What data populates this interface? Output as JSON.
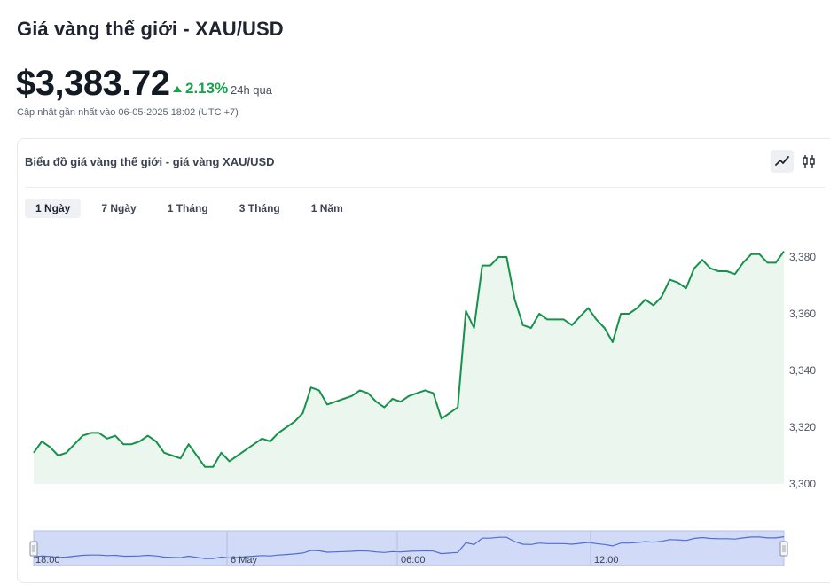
{
  "header": {
    "title": "Giá vàng thế giới - XAU/USD",
    "price": "$3,383.72",
    "change": "2.13%",
    "period": "24h qua",
    "updated": "Cập nhật gần nhất vào 06-05-2025 18:02 (UTC +7)"
  },
  "card": {
    "title": "Biểu đồ giá vàng thế giới - giá vàng XAU/USD",
    "view_buttons": [
      {
        "icon": "line-chart-icon",
        "active": true
      },
      {
        "icon": "candlestick-icon",
        "active": false
      }
    ],
    "tabs": [
      {
        "label": "1 Ngày",
        "active": true
      },
      {
        "label": "7 Ngày",
        "active": false
      },
      {
        "label": "1 Tháng",
        "active": false
      },
      {
        "label": "3 Tháng",
        "active": false
      },
      {
        "label": "1 Năm",
        "active": false
      }
    ]
  },
  "colors": {
    "line": "#16924a",
    "area": "#eaf6ee",
    "navigator_fill": "#c9d3f5",
    "navigator_line": "#4f6dd6",
    "positive": "#16a34a"
  },
  "chart_data": {
    "type": "area",
    "y": [
      3311,
      3315,
      3313,
      3310,
      3311,
      3314,
      3317,
      3318,
      3318,
      3316,
      3317,
      3314,
      3314,
      3315,
      3317,
      3315,
      3311,
      3310,
      3309,
      3314,
      3310,
      3306,
      3306,
      3311,
      3308,
      3310,
      3312,
      3314,
      3316,
      3315,
      3318,
      3320,
      3322,
      3325,
      3334,
      3333,
      3328,
      3329,
      3330,
      3331,
      3333,
      3332,
      3329,
      3327,
      3330,
      3329,
      3331,
      3332,
      3333,
      3332,
      3323,
      3325,
      3327,
      3361,
      3355,
      3377,
      3377,
      3380,
      3380,
      3365,
      3356,
      3355,
      3360,
      3358,
      3358,
      3358,
      3356,
      3359,
      3362,
      3358,
      3355,
      3350,
      3360,
      3360,
      3362,
      3365,
      3363,
      3366,
      3372,
      3371,
      3369,
      3376,
      3379,
      3376,
      3375,
      3375,
      3374,
      3378,
      3381,
      3381,
      3378,
      3378,
      3382
    ],
    "ylim": [
      3300,
      3390
    ],
    "y_ticks": [
      "3,380",
      "3,360",
      "3,340",
      "3,320",
      "3,300"
    ],
    "y_tick_values": [
      3380,
      3360,
      3340,
      3320,
      3300
    ],
    "navigator_labels": [
      "18:00",
      "6 May",
      "06:00",
      "12:00"
    ],
    "grid": false
  }
}
